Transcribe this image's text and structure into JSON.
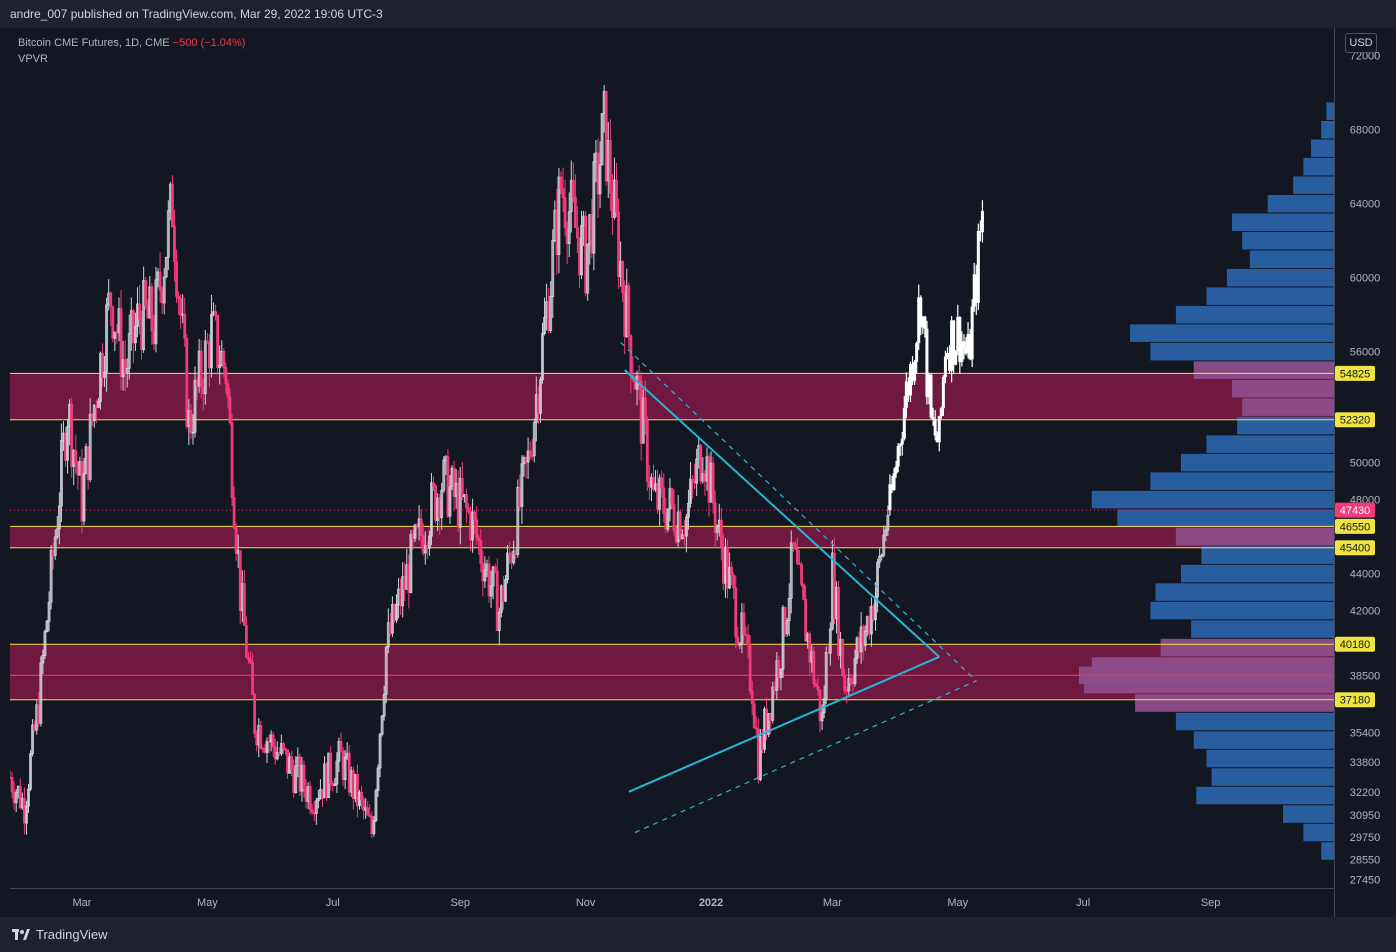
{
  "header": {
    "publish_text": "andre_007 published on TradingView.com, Mar 29, 2022 19:06 UTC-3"
  },
  "legend": {
    "symbol": "Bitcoin CME Futures, 1D, CME",
    "change": "−500 (−1.04%)",
    "indicator": "VPVR"
  },
  "currency_button": "USD",
  "footer": {
    "brand": "TradingView"
  },
  "colors": {
    "background": "#131722",
    "up_candle": "#d1d4dc",
    "down_candle": "#f23b78",
    "zone_fill": "#7a1a44",
    "zone_border": "#f0e442",
    "trendline": "#27b7d6",
    "volume_profile": "#2962a8",
    "volume_profile_zone": "#8e4d8a",
    "projection": "#ffffff",
    "current_price": "#f23b78"
  },
  "chart_data": {
    "type": "candlestick",
    "symbol": "Bitcoin CME Futures",
    "interval": "1D",
    "ylim": [
      27000,
      73500
    ],
    "y_ticks": [
      72000,
      68000,
      64000,
      60000,
      56000,
      50000,
      48000,
      44000,
      42000,
      38500,
      35400,
      33800,
      32200,
      30950,
      29750,
      28550,
      27450
    ],
    "x_time_range": [
      "2021-01-25",
      "2022-10-31"
    ],
    "x_tick_labels": [
      {
        "label": "Mar",
        "date": "2021-03-01"
      },
      {
        "label": "May",
        "date": "2021-05-01"
      },
      {
        "label": "Jul",
        "date": "2021-07-01"
      },
      {
        "label": "Sep",
        "date": "2021-09-01"
      },
      {
        "label": "Nov",
        "date": "2021-11-01"
      },
      {
        "label": "2022",
        "date": "2022-01-01"
      },
      {
        "label": "Mar",
        "date": "2022-03-01"
      },
      {
        "label": "May",
        "date": "2022-05-01"
      },
      {
        "label": "Jul",
        "date": "2022-07-01"
      },
      {
        "label": "Sep",
        "date": "2022-09-01"
      }
    ],
    "price_path": [
      {
        "date": "2021-01-25",
        "close": 33000
      },
      {
        "date": "2021-02-01",
        "close": 31500
      },
      {
        "date": "2021-02-08",
        "close": 37000
      },
      {
        "date": "2021-02-15",
        "close": 45000
      },
      {
        "date": "2021-02-22",
        "close": 53000
      },
      {
        "date": "2021-03-01",
        "close": 48000
      },
      {
        "date": "2021-03-08",
        "close": 54000
      },
      {
        "date": "2021-03-15",
        "close": 59000
      },
      {
        "date": "2021-03-22",
        "close": 55000
      },
      {
        "date": "2021-03-29",
        "close": 58000
      },
      {
        "date": "2021-04-05",
        "close": 57500
      },
      {
        "date": "2021-04-14",
        "close": 64000
      },
      {
        "date": "2021-04-22",
        "close": 52000
      },
      {
        "date": "2021-05-03",
        "close": 57000
      },
      {
        "date": "2021-05-10",
        "close": 55000
      },
      {
        "date": "2021-05-17",
        "close": 43000
      },
      {
        "date": "2021-05-24",
        "close": 36000
      },
      {
        "date": "2021-06-07",
        "close": 34000
      },
      {
        "date": "2021-06-21",
        "close": 32000
      },
      {
        "date": "2021-07-05",
        "close": 34000
      },
      {
        "date": "2021-07-20",
        "close": 30000
      },
      {
        "date": "2021-07-27",
        "close": 40000
      },
      {
        "date": "2021-08-09",
        "close": 45000
      },
      {
        "date": "2021-08-23",
        "close": 49000
      },
      {
        "date": "2021-09-06",
        "close": 47000
      },
      {
        "date": "2021-09-20",
        "close": 42000
      },
      {
        "date": "2021-10-04",
        "close": 50000
      },
      {
        "date": "2021-10-15",
        "close": 60000
      },
      {
        "date": "2021-10-20",
        "close": 65000
      },
      {
        "date": "2021-11-01",
        "close": 61000
      },
      {
        "date": "2021-11-10",
        "close": 68000
      },
      {
        "date": "2021-11-22",
        "close": 57000
      },
      {
        "date": "2021-12-04",
        "close": 48000
      },
      {
        "date": "2021-12-20",
        "close": 47000
      },
      {
        "date": "2021-12-28",
        "close": 51000
      },
      {
        "date": "2022-01-05",
        "close": 46000
      },
      {
        "date": "2022-01-21",
        "close": 38000
      },
      {
        "date": "2022-01-24",
        "close": 34000
      },
      {
        "date": "2022-02-04",
        "close": 40000
      },
      {
        "date": "2022-02-10",
        "close": 45000
      },
      {
        "date": "2022-02-24",
        "close": 36000
      },
      {
        "date": "2022-03-01",
        "close": 44000
      },
      {
        "date": "2022-03-07",
        "close": 38000
      },
      {
        "date": "2022-03-16",
        "close": 40500
      },
      {
        "date": "2022-03-22",
        "close": 43000
      },
      {
        "date": "2022-03-28",
        "close": 47500
      }
    ],
    "projection_path": [
      {
        "date": "2022-03-29",
        "close": 47430
      },
      {
        "date": "2022-04-04",
        "close": 52500
      },
      {
        "date": "2022-04-08",
        "close": 55000
      },
      {
        "date": "2022-04-13",
        "close": 59000
      },
      {
        "date": "2022-04-18",
        "close": 52000
      },
      {
        "date": "2022-04-22",
        "close": 51000
      },
      {
        "date": "2022-04-25",
        "close": 56500
      },
      {
        "date": "2022-05-02",
        "close": 57000
      },
      {
        "date": "2022-05-06",
        "close": 55500
      },
      {
        "date": "2022-05-10",
        "close": 60000
      },
      {
        "date": "2022-05-13",
        "close": 63500
      }
    ],
    "zones": [
      {
        "top": 54825,
        "bottom": 52320
      },
      {
        "top": 46550,
        "bottom": 45400
      },
      {
        "top": 40180,
        "bottom": 37180
      }
    ],
    "zone_mid_line": 38500,
    "current_price": 47430,
    "price_labels": [
      {
        "value": 54825,
        "text": "54825",
        "kind": "level"
      },
      {
        "value": 52320,
        "text": "52320",
        "kind": "level"
      },
      {
        "value": 47430,
        "text": "47430",
        "kind": "current"
      },
      {
        "value": 46550,
        "text": "46550",
        "kind": "level"
      },
      {
        "value": 45400,
        "text": "45400",
        "kind": "level"
      },
      {
        "value": 40180,
        "text": "40180",
        "kind": "level"
      },
      {
        "value": 37180,
        "text": "37180",
        "kind": "level"
      }
    ],
    "trendlines": [
      {
        "style": "solid",
        "from": {
          "date": "2021-11-20",
          "price": 55000
        },
        "to": {
          "date": "2022-04-22",
          "price": 39500
        }
      },
      {
        "style": "solid",
        "from": {
          "date": "2021-11-22",
          "price": 32200
        },
        "to": {
          "date": "2022-04-22",
          "price": 39500
        }
      },
      {
        "style": "dashed",
        "from": {
          "date": "2021-11-18",
          "price": 56500
        },
        "to": {
          "date": "2022-05-10",
          "price": 38200
        }
      },
      {
        "style": "dashed",
        "from": {
          "date": "2021-11-25",
          "price": 30000
        },
        "to": {
          "date": "2022-05-10",
          "price": 38200
        }
      }
    ],
    "volume_profile": {
      "side": "right",
      "rows": [
        {
          "price": 69000,
          "volume": 0.03
        },
        {
          "price": 68000,
          "volume": 0.05
        },
        {
          "price": 67000,
          "volume": 0.09
        },
        {
          "price": 66000,
          "volume": 0.12
        },
        {
          "price": 65000,
          "volume": 0.16
        },
        {
          "price": 64000,
          "volume": 0.26
        },
        {
          "price": 63000,
          "volume": 0.4
        },
        {
          "price": 62000,
          "volume": 0.36
        },
        {
          "price": 61000,
          "volume": 0.33
        },
        {
          "price": 60000,
          "volume": 0.42
        },
        {
          "price": 59000,
          "volume": 0.5
        },
        {
          "price": 58000,
          "volume": 0.62
        },
        {
          "price": 57000,
          "volume": 0.8
        },
        {
          "price": 56000,
          "volume": 0.72
        },
        {
          "price": 55000,
          "volume": 0.55
        },
        {
          "price": 54000,
          "volume": 0.4
        },
        {
          "price": 53000,
          "volume": 0.36
        },
        {
          "price": 52000,
          "volume": 0.38
        },
        {
          "price": 51000,
          "volume": 0.5
        },
        {
          "price": 50000,
          "volume": 0.6
        },
        {
          "price": 49000,
          "volume": 0.72
        },
        {
          "price": 48000,
          "volume": 0.95
        },
        {
          "price": 47000,
          "volume": 0.85
        },
        {
          "price": 46000,
          "volume": 0.62
        },
        {
          "price": 45000,
          "volume": 0.52
        },
        {
          "price": 44000,
          "volume": 0.6
        },
        {
          "price": 43000,
          "volume": 0.7
        },
        {
          "price": 42000,
          "volume": 0.72
        },
        {
          "price": 41000,
          "volume": 0.56
        },
        {
          "price": 40000,
          "volume": 0.68
        },
        {
          "price": 39000,
          "volume": 0.95
        },
        {
          "price": 38500,
          "volume": 1.0
        },
        {
          "price": 38000,
          "volume": 0.98
        },
        {
          "price": 37000,
          "volume": 0.78
        },
        {
          "price": 36000,
          "volume": 0.62
        },
        {
          "price": 35000,
          "volume": 0.55
        },
        {
          "price": 34000,
          "volume": 0.5
        },
        {
          "price": 33000,
          "volume": 0.48
        },
        {
          "price": 32000,
          "volume": 0.54
        },
        {
          "price": 31000,
          "volume": 0.2
        },
        {
          "price": 30000,
          "volume": 0.12
        },
        {
          "price": 29000,
          "volume": 0.05
        }
      ]
    }
  }
}
